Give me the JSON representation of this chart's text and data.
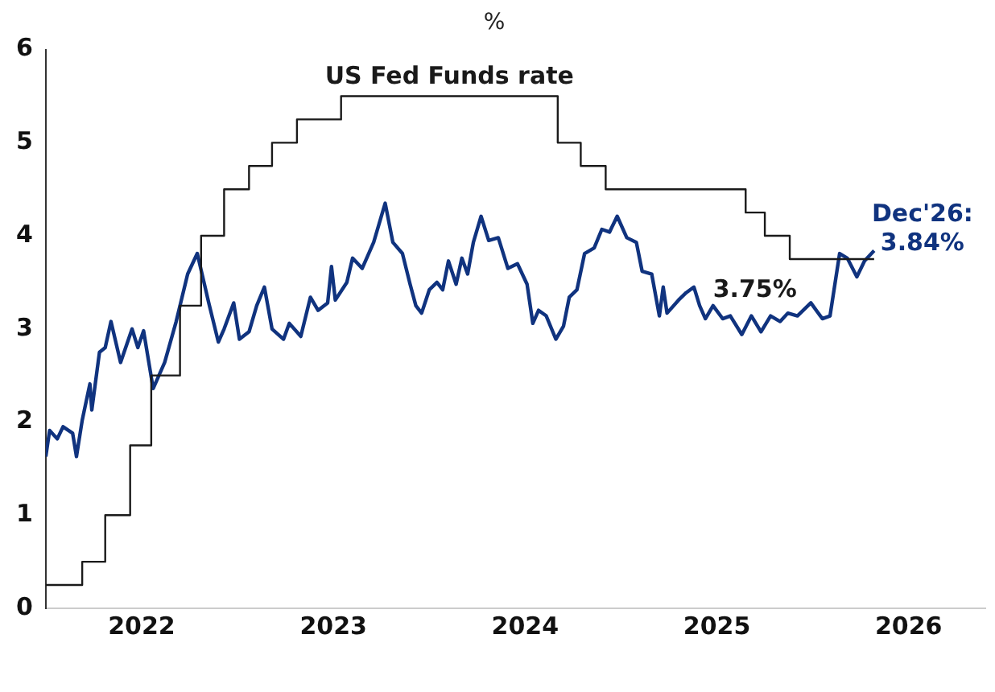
{
  "chart_data": {
    "type": "line",
    "title": "%",
    "xlim": [
      2022,
      2026.9
    ],
    "xticks": [
      {
        "value": 2022.5,
        "label": "2022"
      },
      {
        "value": 2023.5,
        "label": "2023"
      },
      {
        "value": 2024.5,
        "label": "2024"
      },
      {
        "value": 2025.5,
        "label": "2025"
      },
      {
        "value": 2026.5,
        "label": "2026"
      }
    ],
    "ylim": [
      0,
      6
    ],
    "yticks": [
      0,
      1,
      2,
      3,
      4,
      5,
      6
    ],
    "grid": false,
    "legend": false,
    "marker": "none",
    "line_style": "solid",
    "series": [
      {
        "name": "US Fed Funds rate",
        "type": "step",
        "color": "#1a1a1a",
        "x": [
          2022,
          2022.19,
          2022.31,
          2022.44,
          2022.55,
          2022.7,
          2022.81,
          2022.93,
          2023.06,
          2023.18,
          2023.31,
          2023.54,
          2024.67,
          2024.79,
          2024.92,
          2025.65,
          2025.75,
          2025.88,
          2026.32
        ],
        "values": [
          0.25,
          0.5,
          1.0,
          1.75,
          2.5,
          3.25,
          4.0,
          4.5,
          4.75,
          5.0,
          5.25,
          5.5,
          5.0,
          4.75,
          4.5,
          4.25,
          4.0,
          3.75,
          3.75
        ]
      },
      {
        "type": "line",
        "color": "#10337f",
        "x": [
          2022.0,
          2022.02,
          2022.06,
          2022.09,
          2022.14,
          2022.16,
          2022.19,
          2022.23,
          2022.24,
          2022.28,
          2022.31,
          2022.34,
          2022.39,
          2022.45,
          2022.48,
          2022.51,
          2022.56,
          2022.62,
          2022.68,
          2022.74,
          2022.79,
          2022.85,
          2022.9,
          2022.93,
          2022.98,
          2023.01,
          2023.06,
          2023.1,
          2023.14,
          2023.18,
          2023.24,
          2023.27,
          2023.33,
          2023.38,
          2023.42,
          2023.47,
          2023.49,
          2023.51,
          2023.57,
          2023.6,
          2023.65,
          2023.71,
          2023.77,
          2023.81,
          2023.86,
          2023.9,
          2023.93,
          2023.96,
          2024.0,
          2024.04,
          2024.07,
          2024.1,
          2024.14,
          2024.17,
          2024.2,
          2024.23,
          2024.27,
          2024.31,
          2024.36,
          2024.41,
          2024.46,
          2024.51,
          2024.54,
          2024.57,
          2024.61,
          2024.66,
          2024.7,
          2024.73,
          2024.77,
          2024.81,
          2024.86,
          2024.9,
          2024.94,
          2024.98,
          2025.03,
          2025.08,
          2025.11,
          2025.16,
          2025.2,
          2025.22,
          2025.24,
          2025.3,
          2025.34,
          2025.38,
          2025.41,
          2025.44,
          2025.48,
          2025.53,
          2025.57,
          2025.63,
          2025.68,
          2025.73,
          2025.78,
          2025.83,
          2025.87,
          2025.92,
          2025.99,
          2026.05,
          2026.09,
          2026.14,
          2026.18,
          2026.23,
          2026.27,
          2026.32
        ],
        "values": [
          1.63,
          1.91,
          1.82,
          1.95,
          1.88,
          1.63,
          2.02,
          2.41,
          2.13,
          2.75,
          2.8,
          3.08,
          2.64,
          3.0,
          2.8,
          2.98,
          2.36,
          2.64,
          3.08,
          3.59,
          3.81,
          3.28,
          2.86,
          3.0,
          3.28,
          2.89,
          2.97,
          3.25,
          3.45,
          3.0,
          2.89,
          3.06,
          2.92,
          3.34,
          3.2,
          3.28,
          3.67,
          3.31,
          3.5,
          3.76,
          3.65,
          3.93,
          4.35,
          3.93,
          3.81,
          3.48,
          3.25,
          3.17,
          3.42,
          3.5,
          3.42,
          3.73,
          3.48,
          3.76,
          3.59,
          3.93,
          4.21,
          3.95,
          3.98,
          3.65,
          3.7,
          3.48,
          3.06,
          3.2,
          3.14,
          2.89,
          3.03,
          3.34,
          3.42,
          3.81,
          3.87,
          4.07,
          4.04,
          4.21,
          3.98,
          3.93,
          3.62,
          3.59,
          3.14,
          3.45,
          3.17,
          3.31,
          3.39,
          3.45,
          3.25,
          3.11,
          3.25,
          3.11,
          3.14,
          2.94,
          3.14,
          2.97,
          3.14,
          3.08,
          3.17,
          3.14,
          3.28,
          3.11,
          3.14,
          3.81,
          3.76,
          3.56,
          3.73,
          3.84
        ]
      }
    ],
    "annotations": [
      {
        "text": "3.75%",
        "x": 2025.95,
        "y": 3.75
      },
      {
        "text": "Dec'26: 3.84%",
        "x": 2026.32,
        "y": 3.84
      }
    ]
  }
}
